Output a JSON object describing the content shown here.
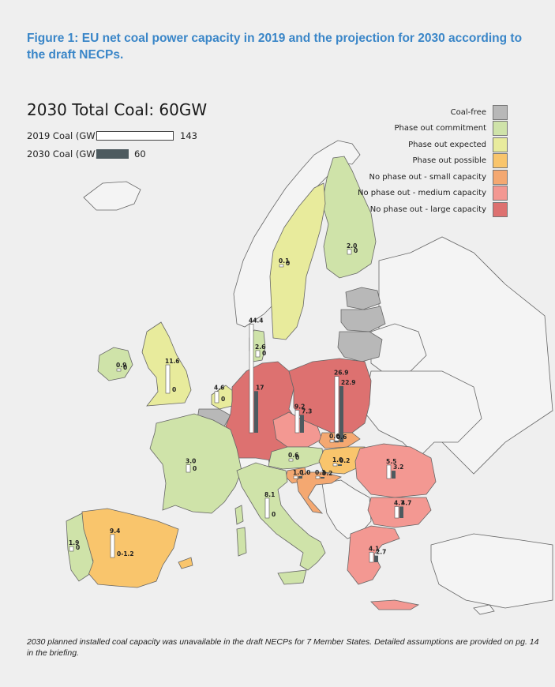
{
  "title": "Figure 1: EU net coal power capacity in 2019 and the projection for 2030 according to the draft NECPs.",
  "total": "2030 Total Coal: 60GW",
  "key": {
    "coal2019": {
      "label": "2019 Coal (GW)",
      "value": "143"
    },
    "coal2030": {
      "label": "2030 Coal (GW)",
      "value": "60"
    }
  },
  "legend": [
    {
      "label": "Coal-free",
      "color": "#b8b8b8"
    },
    {
      "label": "Phase out commitment",
      "color": "#cfe3a9"
    },
    {
      "label": "Phase out expected",
      "color": "#e8eb9c"
    },
    {
      "label": "Phase out possible",
      "color": "#f9c56c"
    },
    {
      "label": "No phase out - small capacity",
      "color": "#f4a871"
    },
    {
      "label": "No phase out - medium capacity",
      "color": "#f39892"
    },
    {
      "label": "No phase out - large capacity",
      "color": "#dd7170"
    }
  ],
  "countries": {
    "germany": {
      "v2019": "44.4",
      "v2030": "17",
      "n2019": 44.4,
      "n2030": 17
    },
    "poland": {
      "v2019": "26.9",
      "v2030": "22.9",
      "n2019": 26.9,
      "n2030": 22.9
    },
    "uk": {
      "v2019": "11.6",
      "v2030": "0",
      "n2019": 11.6,
      "n2030": 0
    },
    "ireland": {
      "v2019": "0.9",
      "v2030": "0",
      "n2019": 0.9,
      "n2030": 0
    },
    "netherlands": {
      "v2019": "4.6",
      "v2030": "0",
      "n2019": 4.6,
      "n2030": 0
    },
    "denmark": {
      "v2019": "2.6",
      "v2030": "0",
      "n2019": 2.6,
      "n2030": 0
    },
    "sweden": {
      "v2019": "0.1",
      "v2030": "0",
      "n2019": 0.1,
      "n2030": 0
    },
    "finland": {
      "v2019": "2.0",
      "v2030": "0",
      "n2019": 2.0,
      "n2030": 0
    },
    "czechia": {
      "v2019": "9.2",
      "v2030": "7.3",
      "n2019": 9.2,
      "n2030": 7.3
    },
    "slovakia": {
      "v2019": "0.6",
      "v2030": "0.6",
      "n2019": 0.6,
      "n2030": 0.6
    },
    "hungary": {
      "v2019": "1.0",
      "v2030": "0.2",
      "n2019": 1.0,
      "n2030": 0.2
    },
    "austria": {
      "v2019": "0.6",
      "v2030": "0",
      "n2019": 0.6,
      "n2030": 0
    },
    "slovenia": {
      "v2019": "1.0",
      "v2030": "1.0",
      "n2019": 1.0,
      "n2030": 1.0
    },
    "croatia": {
      "v2019": "0.3",
      "v2030": "0.2",
      "n2019": 0.3,
      "n2030": 0.2
    },
    "romania": {
      "v2019": "5.5",
      "v2030": "3.2",
      "n2019": 5.5,
      "n2030": 3.2
    },
    "bulgaria": {
      "v2019": "4.7",
      "v2030": "4.7",
      "n2019": 4.7,
      "n2030": 4.7
    },
    "greece": {
      "v2019": "4.1",
      "v2030": "2.7",
      "n2019": 4.1,
      "n2030": 2.7
    },
    "italy": {
      "v2019": "8.1",
      "v2030": "0",
      "n2019": 8.1,
      "n2030": 0
    },
    "france": {
      "v2019": "3.0",
      "v2030": "0",
      "n2019": 3.0,
      "n2030": 0
    },
    "spain": {
      "v2019": "9.4",
      "v2030": "0-1.2",
      "n2019": 9.4,
      "n2030": 0
    },
    "portugal": {
      "v2019": "1.9",
      "v2030": "0",
      "n2019": 1.9,
      "n2030": 0
    }
  },
  "footnote": "2030 planned installed coal capacity was unavailable in the draft NECPs for 7 Member States. Detailed assumptions are provided on pg. 14 in the briefing."
}
